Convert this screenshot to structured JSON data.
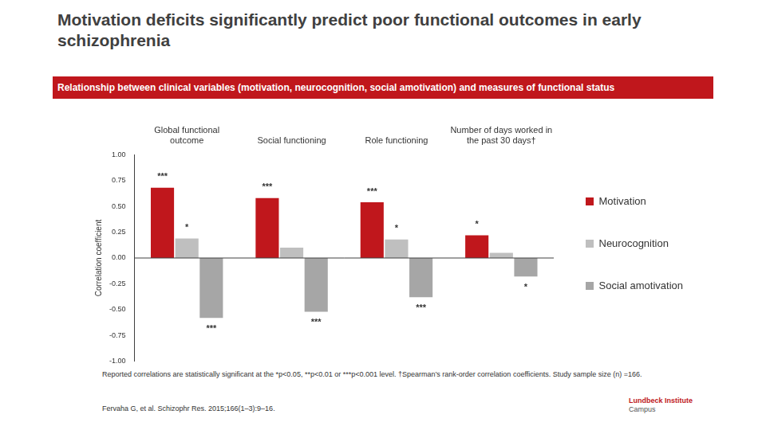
{
  "chart_data": {
    "type": "bar",
    "title": "Motivation deficits significantly predict poor functional outcomes in early schizophrenia",
    "subtitle": "Relationship between clinical variables (motivation, neurocognition, social amotivation) and measures of functional status",
    "y_label": "Correlation coefficient",
    "categories": [
      "Global functional outcome",
      "Social functioning",
      "Role functioning",
      "Number of days worked in the past 30 days†"
    ],
    "series": [
      {
        "name": "Motivation",
        "color": "#c0171c",
        "values": [
          0.68,
          0.58,
          0.54,
          0.22
        ],
        "significance": [
          "***",
          "***",
          "***",
          "*"
        ]
      },
      {
        "name": "Neurocognition",
        "color": "#bfbfbf",
        "values": [
          0.19,
          0.1,
          0.18,
          0.05
        ],
        "significance": [
          "*",
          null,
          "*",
          null
        ]
      },
      {
        "name": "Social amotivation",
        "color": "#a6a6a6",
        "values": [
          -0.58,
          -0.52,
          -0.38,
          -0.18
        ],
        "significance": [
          "***",
          "***",
          "***",
          "*"
        ]
      }
    ],
    "ylim": [
      -1,
      1
    ],
    "yticks": [
      {
        "value": -1,
        "label": "-1.00"
      },
      {
        "value": -0.75,
        "label": "-0.75"
      },
      {
        "value": -0.5,
        "label": "-0.50"
      },
      {
        "value": -0.25,
        "label": "-0.25"
      },
      {
        "value": 0,
        "label": "0.00"
      },
      {
        "value": 0.25,
        "label": "0.25"
      },
      {
        "value": 0.5,
        "label": "0.50"
      },
      {
        "value": 0.75,
        "label": "0.75"
      },
      {
        "value": 1,
        "label": "1.00"
      }
    ],
    "grid": false,
    "legend": "right"
  },
  "footnote": "Reported correlations are statistically significant at the *p<0.05, **p<0.01 or ***p<0.001 level. †Spearman’s rank-order correlation coefficients. Study sample size (n) =166.",
  "reference": "Fervaha G, et al. Schizophr Res. 2015;166(1–3):9–16.",
  "logo": [
    "Lundbeck Institute",
    "Campus"
  ]
}
